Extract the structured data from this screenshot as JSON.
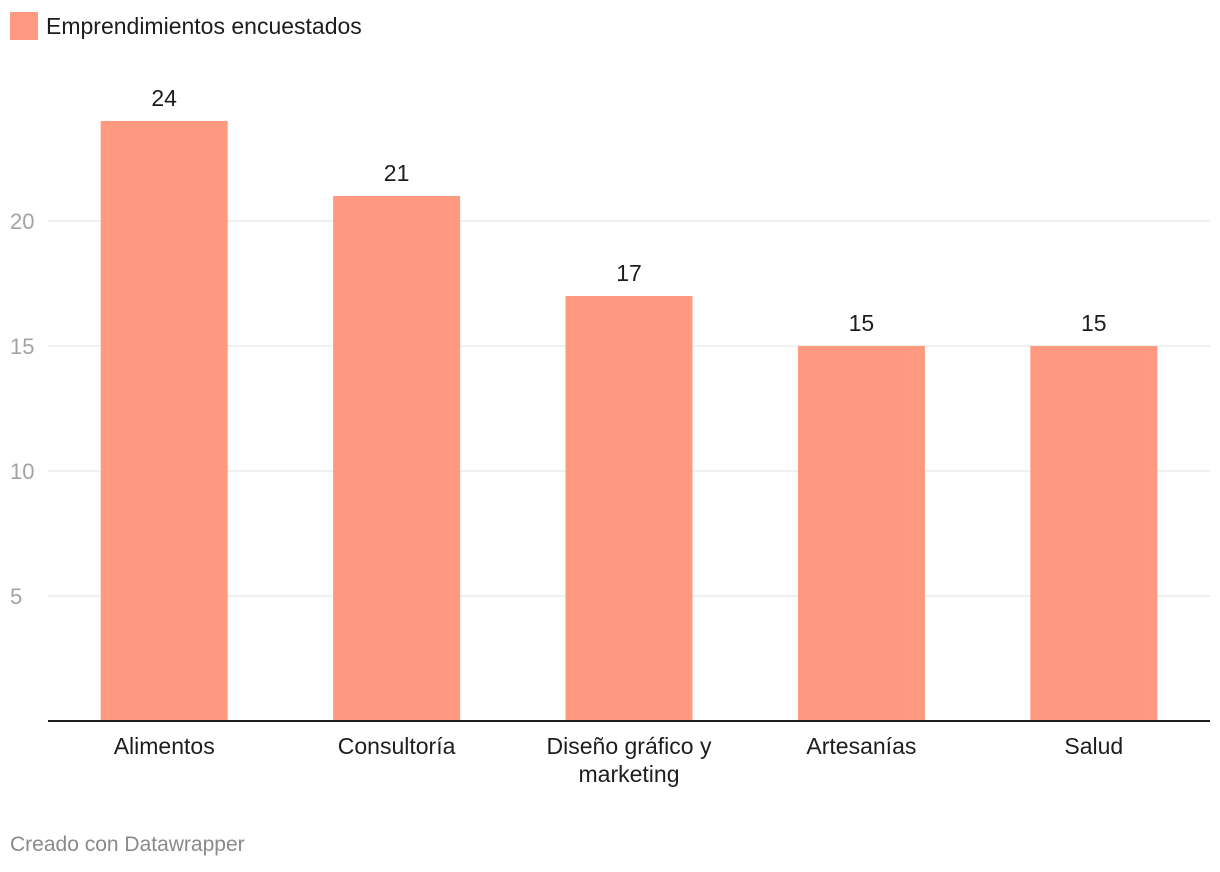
{
  "chart_data": {
    "type": "bar",
    "categories": [
      "Alimentos",
      "Consultoría",
      "Diseño gráfico y marketing",
      "Artesanías",
      "Salud"
    ],
    "category_lines": [
      [
        "Alimentos"
      ],
      [
        "Consultoría"
      ],
      [
        "Diseño gráfico y",
        "marketing"
      ],
      [
        "Artesanías"
      ],
      [
        "Salud"
      ]
    ],
    "series": [
      {
        "name": "Emprendimientos encuestados",
        "values": [
          24,
          21,
          17,
          15,
          15
        ],
        "color": "#ff9980"
      }
    ],
    "value_labels": [
      "24",
      "21",
      "17",
      "15",
      "15"
    ],
    "yticks": [
      5,
      10,
      15,
      20
    ],
    "ytick_labels": [
      "5",
      "10",
      "15",
      "20"
    ],
    "ylim": [
      0,
      24
    ],
    "grid": true,
    "legend": "top-left",
    "title": "",
    "xlabel": "",
    "ylabel": ""
  },
  "legend": {
    "label": "Emprendimientos encuestados",
    "color": "#ff9980"
  },
  "footer": {
    "credit": "Creado con Datawrapper"
  }
}
